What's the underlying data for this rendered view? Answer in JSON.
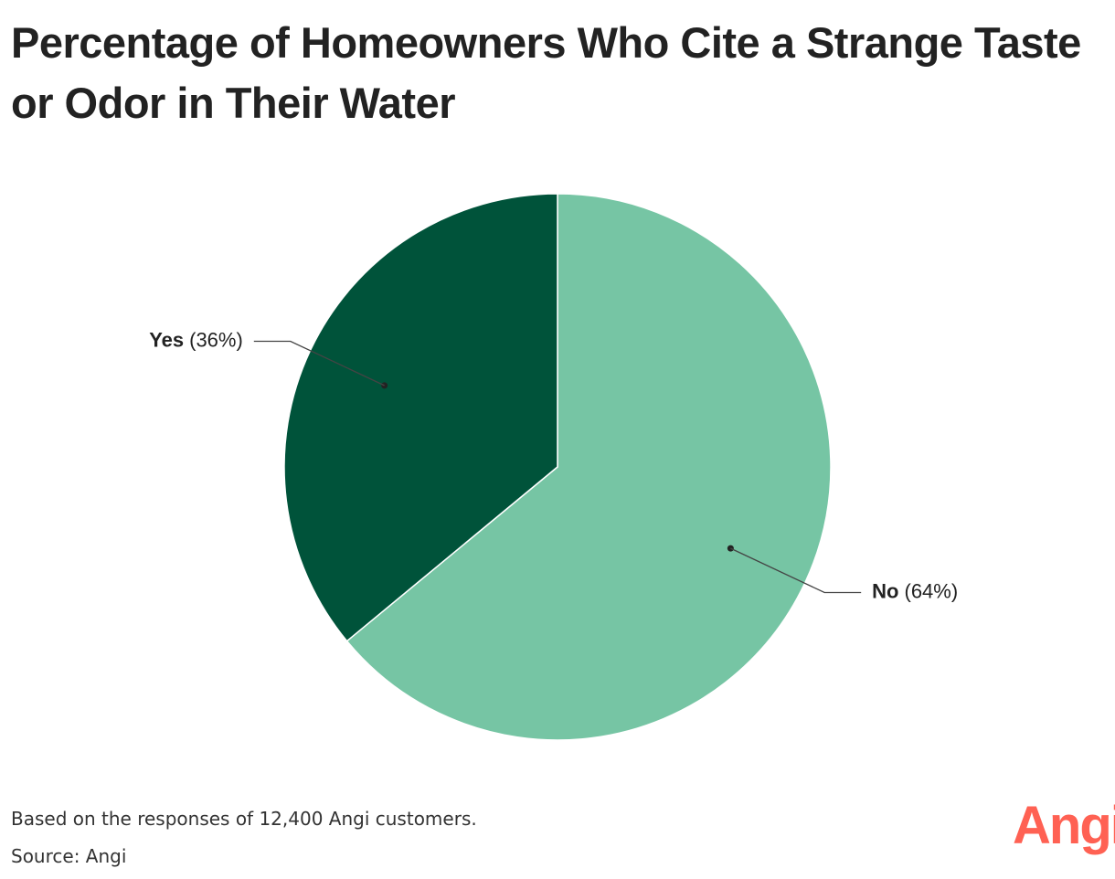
{
  "chart_data": {
    "type": "pie",
    "title": "Percentage of Homeowners Who Cite a Strange Taste or Odor in Their Water",
    "categories": [
      "No",
      "Yes"
    ],
    "values": [
      64,
      36
    ],
    "value_labels": [
      "(64%)",
      "(36%)"
    ],
    "colors": [
      "#76c5a4",
      "#00533a"
    ],
    "notes": [
      "Based on the responses of 12,400 Angi customers.",
      "Source: Angi"
    ],
    "logo": "Angi"
  }
}
